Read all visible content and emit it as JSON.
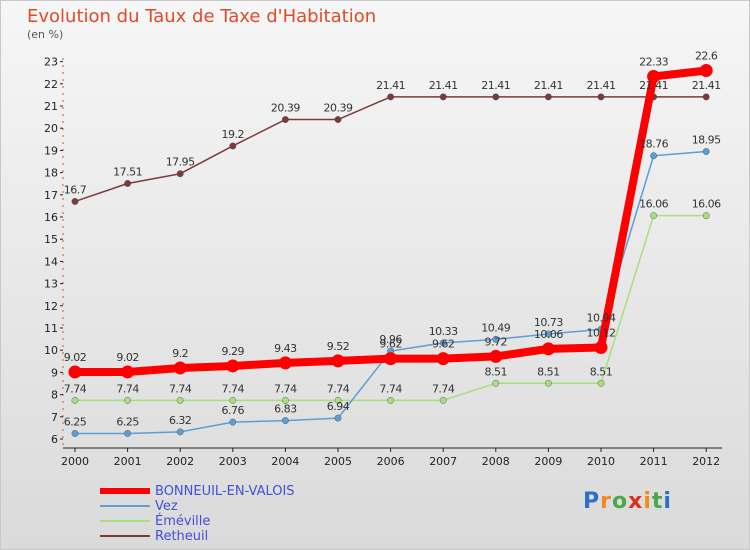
{
  "title": "Evolution du Taux de Taxe d'Habitation",
  "unit_label": "(en %)",
  "logo_text": "Proxiti",
  "chart_data": {
    "type": "line",
    "title": "Evolution du Taux de Taxe d'Habitation",
    "ylabel": "(en %)",
    "xlabel": "",
    "x": [
      "2000",
      "2001",
      "2002",
      "2003",
      "2004",
      "2005",
      "2006",
      "2007",
      "2008",
      "2009",
      "2010",
      "2011",
      "2012"
    ],
    "ylim": [
      6,
      23
    ],
    "yticks": [
      6,
      7,
      8,
      9,
      10,
      11,
      12,
      13,
      14,
      15,
      16,
      17,
      18,
      19,
      20,
      21,
      22,
      23
    ],
    "grid": false,
    "legend_position": "bottom-left",
    "series": [
      {
        "name": "BONNEUIL-EN-VALOIS",
        "color": "#ff0000",
        "values": [
          9.02,
          9.02,
          9.2,
          9.29,
          9.43,
          9.52,
          9.62,
          9.62,
          9.72,
          10.06,
          10.12,
          22.33,
          22.6
        ],
        "labels": [
          "9.02",
          "9.02",
          "9.2",
          "9.29",
          "9.43",
          "9.52",
          "9.62",
          "9.62",
          "9.72",
          "10.06",
          "10.12",
          "22.33",
          "22.6"
        ]
      },
      {
        "name": "Vez",
        "color": "#5d9ed6",
        "values": [
          6.25,
          6.25,
          6.32,
          6.76,
          6.83,
          6.94,
          9.96,
          10.33,
          10.49,
          10.73,
          10.94,
          18.76,
          18.95
        ],
        "labels": [
          "6.25",
          "6.25",
          "6.32",
          "6.76",
          "6.83",
          "6.94",
          "9.96",
          "10.33",
          "10.49",
          "10.73",
          "10.94",
          "18.76",
          "18.95"
        ]
      },
      {
        "name": "Éméville",
        "color": "#a6e07e",
        "values": [
          7.74,
          7.74,
          7.74,
          7.74,
          7.74,
          7.74,
          7.74,
          7.74,
          8.51,
          8.51,
          8.51,
          16.06,
          16.06
        ],
        "labels": [
          "7.74",
          "7.74",
          "7.74",
          "7.74",
          "7.74",
          "7.74",
          "7.74",
          "7.74",
          "8.51",
          "8.51",
          "8.51",
          "16.06",
          "16.06"
        ]
      },
      {
        "name": "Retheuil",
        "color": "#7b3b3b",
        "values": [
          16.7,
          17.51,
          17.95,
          19.2,
          20.39,
          20.39,
          21.41,
          21.41,
          21.41,
          21.41,
          21.41,
          21.41,
          21.41
        ],
        "labels": [
          "16.7",
          "17.51",
          "17.95",
          "19.2",
          "20.39",
          "20.39",
          "21.41",
          "21.41",
          "21.41",
          "21.41",
          "21.41",
          "21.41",
          "21.41"
        ]
      }
    ]
  },
  "legend": [
    {
      "label": "BONNEUIL-EN-VALOIS",
      "color": "#ff0000",
      "thickness": 6
    },
    {
      "label": "Vez",
      "color": "#5d9ed6",
      "thickness": 2
    },
    {
      "label": "Éméville",
      "color": "#a6e07e",
      "thickness": 2
    },
    {
      "label": "Retheuil",
      "color": "#7b3b3b",
      "thickness": 2
    }
  ]
}
